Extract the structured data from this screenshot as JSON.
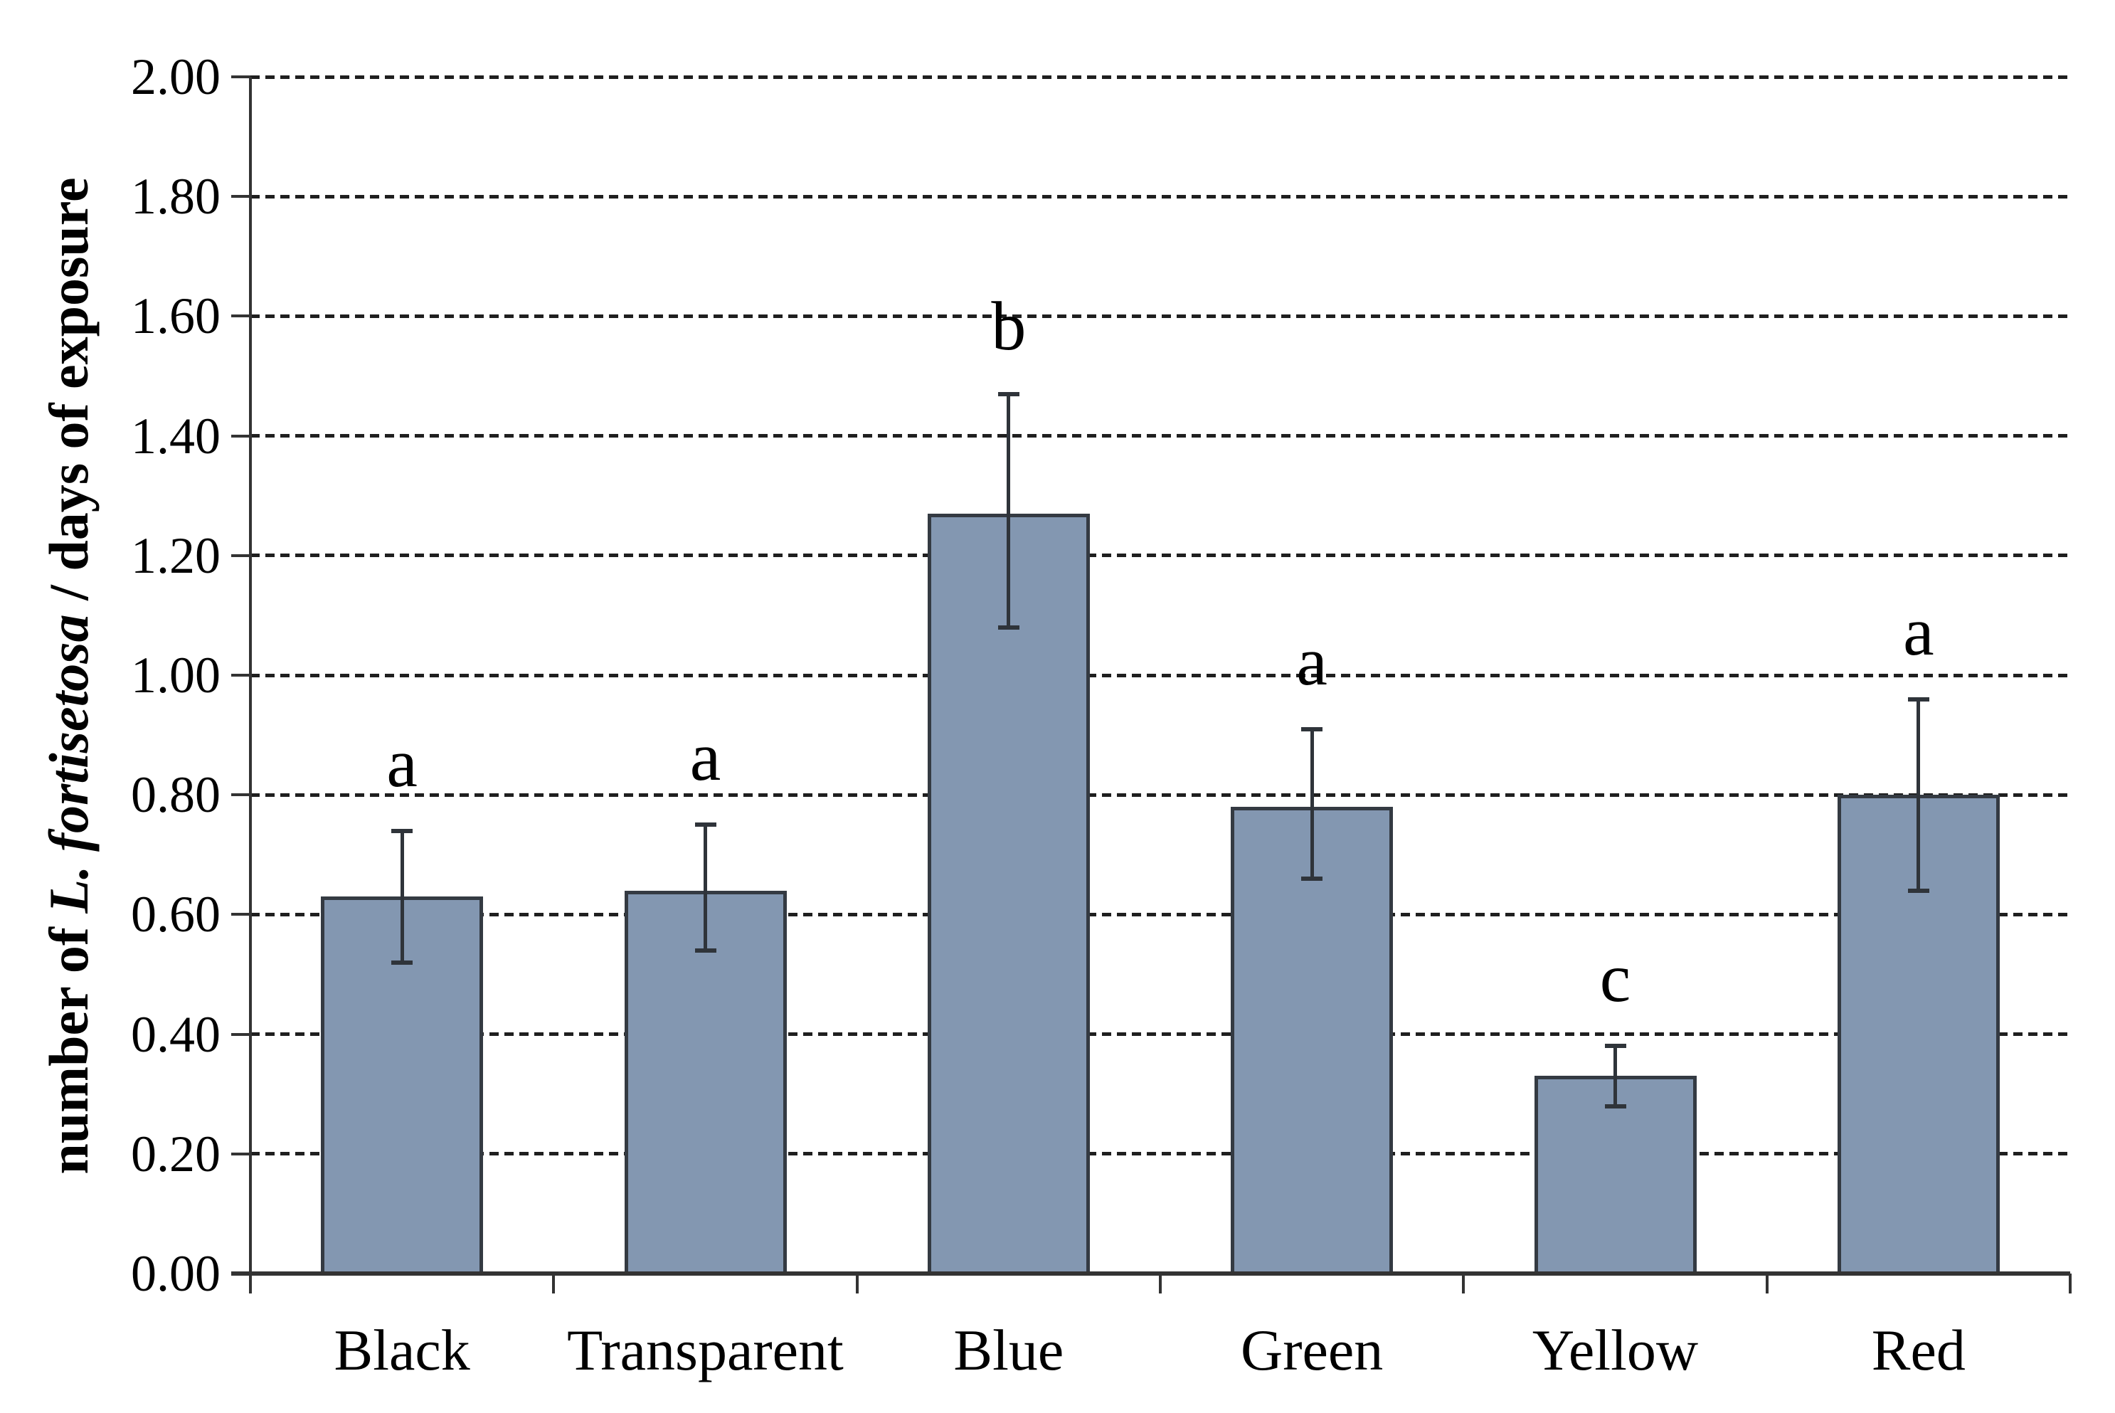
{
  "chart_data": {
    "type": "bar",
    "title": "",
    "ylabel_parts": {
      "prefix": "number of ",
      "italic": "L. fortisetosa",
      "suffix": " / days of exposure"
    },
    "xlabel": "",
    "categories": [
      "Black",
      "Transparent",
      "Blue",
      "Green",
      "Yellow",
      "Red"
    ],
    "values": [
      0.63,
      0.64,
      1.27,
      0.78,
      0.33,
      0.8
    ],
    "error_low": [
      0.52,
      0.54,
      1.08,
      0.66,
      0.28,
      0.64
    ],
    "error_high": [
      0.74,
      0.75,
      1.47,
      0.91,
      0.38,
      0.96
    ],
    "significance_letters": [
      "a",
      "a",
      "b",
      "a",
      "c",
      "a"
    ],
    "ylim": [
      0.0,
      2.0
    ],
    "y_tick_step": 0.2,
    "y_tick_labels": [
      "0.00",
      "0.20",
      "0.40",
      "0.60",
      "0.80",
      "1.00",
      "1.20",
      "1.40",
      "1.60",
      "1.80",
      "2.00"
    ],
    "grid": "horizontal-dashed",
    "legend": "none",
    "colors": {
      "bar_fill": "#8397B1",
      "bar_border": "#343A42",
      "error_bar": "#2F343A",
      "gridline": "#1F1F1F",
      "axis": "#333333",
      "text": "#000000"
    }
  }
}
